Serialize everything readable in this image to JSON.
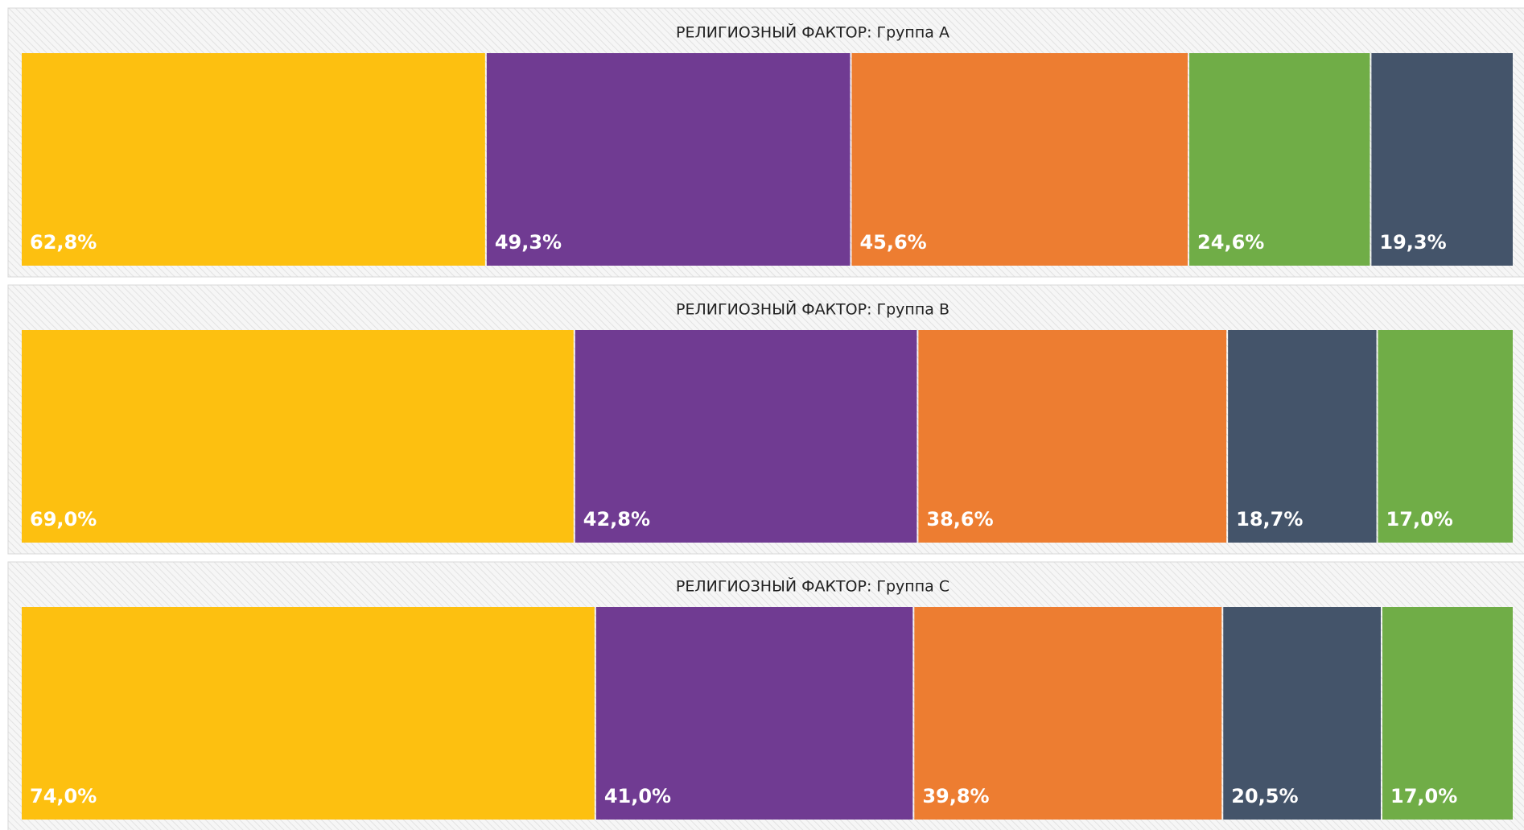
{
  "chart_data": [
    {
      "type": "treemap",
      "title": "РЕЛИГИОЗНЫЙ ФАКТОР: Группа А",
      "values": [
        62.8,
        49.3,
        45.6,
        24.6,
        19.3
      ],
      "value_labels": [
        "62,8%",
        "49,3%",
        "45,6%",
        "24,6%",
        "19,3%"
      ],
      "colors": [
        "#fdc010",
        "#703b92",
        "#ed7d31",
        "#70ad47",
        "#44546a"
      ]
    },
    {
      "type": "treemap",
      "title": "РЕЛИГИОЗНЫЙ ФАКТОР: Группа В",
      "values": [
        69.0,
        42.8,
        38.6,
        18.7,
        17.0
      ],
      "value_labels": [
        "69,0%",
        "42,8%",
        "38,6%",
        "18,7%",
        "17,0%"
      ],
      "colors": [
        "#fdc010",
        "#703b92",
        "#ed7d31",
        "#44546a",
        "#70ad47"
      ]
    },
    {
      "type": "treemap",
      "title": "РЕЛИГИОЗНЫЙ ФАКТОР: Группа С",
      "values": [
        74.0,
        41.0,
        39.8,
        20.5,
        17.0
      ],
      "value_labels": [
        "74,0%",
        "41,0%",
        "39,8%",
        "20,5%",
        "17,0%"
      ],
      "colors": [
        "#fdc010",
        "#703b92",
        "#ed7d31",
        "#44546a",
        "#70ad47"
      ]
    }
  ]
}
